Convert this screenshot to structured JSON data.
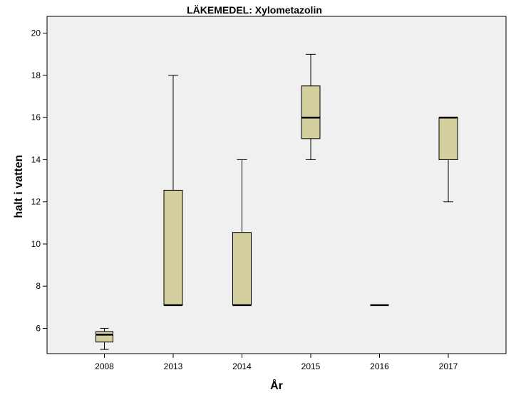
{
  "chart_data": {
    "type": "boxplot",
    "title": "LÄKEMEDEL: Xylometazolin",
    "xlabel": "År",
    "ylabel": "halt i vatten",
    "categories": [
      "2008",
      "2013",
      "2014",
      "2015",
      "2016",
      "2017"
    ],
    "ylim": [
      4.8,
      20.8
    ],
    "yticks": [
      6,
      8,
      10,
      12,
      14,
      16,
      18,
      20
    ],
    "ytick_labels": [
      "6",
      "8",
      "10",
      "12",
      "14",
      "16",
      "18",
      "20"
    ],
    "grid": false,
    "boxes": [
      {
        "category": "2008",
        "min": 5.0,
        "q1": 5.35,
        "median": 5.7,
        "q3": 5.85,
        "max": 6.0
      },
      {
        "category": "2013",
        "min": 7.1,
        "q1": 7.1,
        "median": 7.1,
        "q3": 12.55,
        "max": 18.0
      },
      {
        "category": "2014",
        "min": 7.1,
        "q1": 7.1,
        "median": 7.1,
        "q3": 10.55,
        "max": 14.0
      },
      {
        "category": "2015",
        "min": 14.0,
        "q1": 15.0,
        "median": 16.0,
        "q3": 17.5,
        "max": 19.0
      },
      {
        "category": "2016",
        "min": 7.1,
        "q1": 7.1,
        "median": 7.1,
        "q3": 7.1,
        "max": 7.1
      },
      {
        "category": "2017",
        "min": 12.0,
        "q1": 14.0,
        "median": 16.0,
        "q3": 16.0,
        "max": 16.0
      }
    ],
    "colors": {
      "plot_background": "#f0f0f0",
      "box_fill": "#d4cf9e",
      "stroke": "#000000"
    }
  }
}
